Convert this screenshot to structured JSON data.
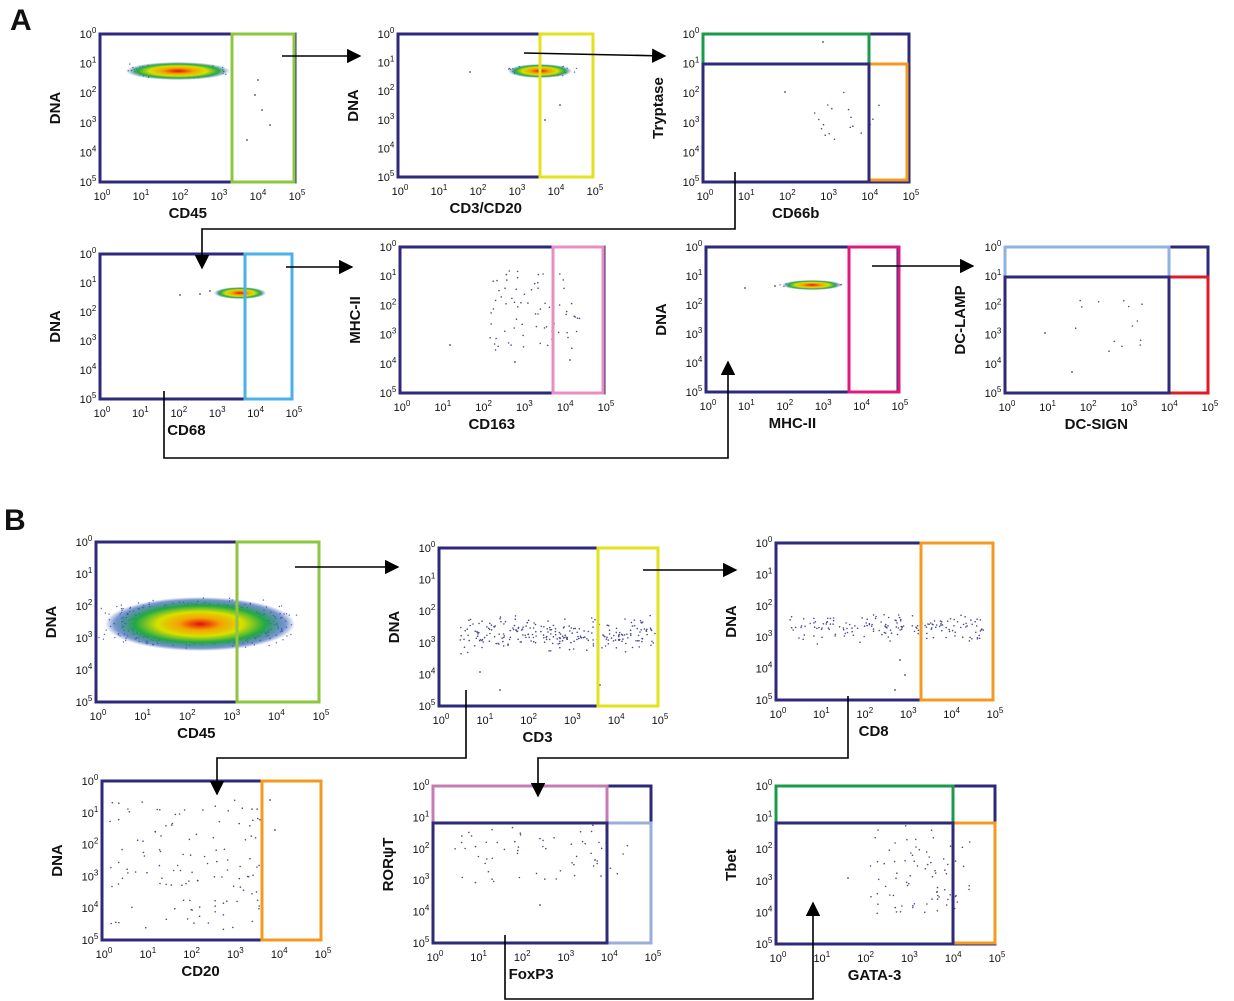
{
  "panel_labels": [
    "A",
    "B"
  ],
  "tick_base": "10",
  "tick_exponents": [
    "0",
    "1",
    "2",
    "3",
    "4",
    "5"
  ],
  "colors": {
    "frame": "#2e2a7a",
    "gate_lime": "#8dc63f",
    "gate_yellow": "#e2e21e",
    "gate_green": "#1a9b4b",
    "gate_orange": "#f39a1f",
    "gate_sky": "#4ab2e6",
    "gate_pink": "#e88fbf",
    "gate_magenta": "#e0197d",
    "gate_lightblue": "#8fb3e0",
    "gate_red": "#e01b24",
    "gate_mauve": "#c77bb3",
    "gate_periwinkle": "#98aedb",
    "arrow": "#000000"
  },
  "plots": [
    {
      "id": "a1",
      "xlabel": "CD45",
      "ylabel": "DNA"
    },
    {
      "id": "a2",
      "xlabel": "CD3/CD20",
      "ylabel": "DNA"
    },
    {
      "id": "a3",
      "xlabel": "CD66b",
      "ylabel": "Tryptase"
    },
    {
      "id": "a4",
      "xlabel": "CD68",
      "ylabel": "DNA"
    },
    {
      "id": "a5",
      "xlabel": "CD163",
      "ylabel": "MHC-II"
    },
    {
      "id": "a6",
      "xlabel": "MHC-II",
      "ylabel": "DNA"
    },
    {
      "id": "a7",
      "xlabel": "DC-SIGN",
      "ylabel": "DC-LAMP"
    },
    {
      "id": "b1",
      "xlabel": "CD45",
      "ylabel": "DNA"
    },
    {
      "id": "b2",
      "xlabel": "CD3",
      "ylabel": "DNA"
    },
    {
      "id": "b3",
      "xlabel": "CD8",
      "ylabel": "DNA"
    },
    {
      "id": "b4",
      "xlabel": "CD20",
      "ylabel": "DNA"
    },
    {
      "id": "b5",
      "xlabel": "FoxP3",
      "ylabel": "RORψT"
    },
    {
      "id": "b6",
      "xlabel": "GATA-3",
      "ylabel": "Tbet"
    }
  ]
}
